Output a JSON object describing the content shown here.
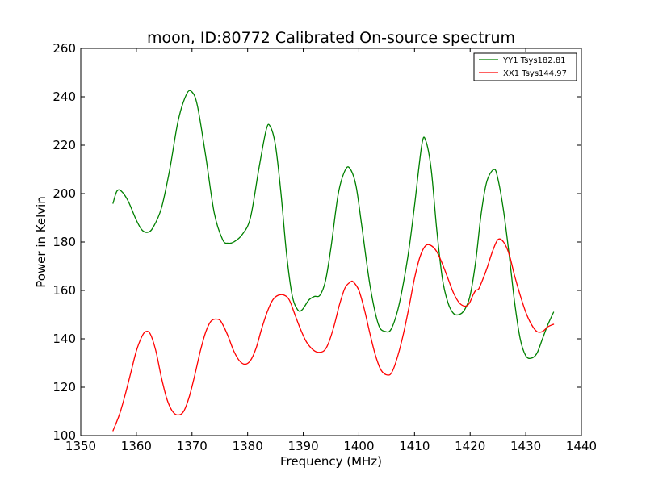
{
  "chart_data": {
    "type": "line",
    "title": "moon, ID:80772 Calibrated On-source spectrum",
    "xlabel": "Frequency (MHz)",
    "ylabel": "Power in Kelvin",
    "xlim": [
      1350,
      1440
    ],
    "ylim": [
      100,
      260
    ],
    "xticks": [
      1350,
      1360,
      1370,
      1380,
      1390,
      1400,
      1410,
      1420,
      1430,
      1440
    ],
    "yticks": [
      100,
      120,
      140,
      160,
      180,
      200,
      220,
      240,
      260
    ],
    "grid": false,
    "legend_position": "top-right",
    "series": [
      {
        "name": "YY1 Tsys182.81",
        "color": "#008000",
        "x": [
          1355.8,
          1356.5,
          1357.3,
          1358.5,
          1360.0,
          1361.0,
          1362.0,
          1363.0,
          1364.5,
          1366.0,
          1367.5,
          1369.0,
          1370.0,
          1371.0,
          1372.5,
          1374.0,
          1375.5,
          1376.5,
          1377.5,
          1379.0,
          1380.5,
          1382.0,
          1383.3,
          1384.0,
          1385.0,
          1386.0,
          1387.0,
          1388.0,
          1389.0,
          1389.8,
          1391.0,
          1392.0,
          1393.0,
          1394.0,
          1395.0,
          1396.3,
          1397.6,
          1398.5,
          1399.5,
          1400.5,
          1402.0,
          1403.5,
          1404.8,
          1405.8,
          1407.0,
          1408.0,
          1409.0,
          1410.0,
          1411.3,
          1412.0,
          1413.0,
          1414.0,
          1415.0,
          1416.0,
          1417.0,
          1418.0,
          1419.0,
          1420.0,
          1421.0,
          1422.0,
          1423.0,
          1424.3,
          1425.0,
          1426.0,
          1427.0,
          1428.0,
          1429.0,
          1430.0,
          1431.0,
          1432.0,
          1433.0,
          1434.0,
          1435.0
        ],
        "y": [
          196,
          201,
          201,
          197,
          189,
          185,
          184,
          186,
          194,
          210,
          230,
          241,
          242,
          236,
          215,
          192,
          181,
          179.5,
          180,
          183,
          190,
          210,
          226,
          228,
          220,
          200,
          175,
          158,
          152,
          152,
          156,
          157.5,
          158,
          164,
          178,
          200,
          210,
          210,
          203,
          187,
          162,
          146,
          143,
          144,
          152,
          163,
          177,
          195,
          220,
          222,
          210,
          185,
          165,
          155,
          150.5,
          150,
          152,
          158,
          172,
          192,
          205,
          210,
          206,
          193,
          175,
          155,
          140,
          133,
          132,
          134,
          140,
          146,
          151
        ]
      },
      {
        "name": "XX1 Tsys144.97",
        "color": "#ff0000",
        "x": [
          1355.8,
          1357.0,
          1358.0,
          1359.0,
          1360.0,
          1361.0,
          1361.7,
          1362.5,
          1363.5,
          1364.5,
          1365.5,
          1366.5,
          1367.5,
          1368.5,
          1369.5,
          1370.5,
          1371.5,
          1372.5,
          1373.5,
          1374.8,
          1375.5,
          1376.5,
          1377.5,
          1378.5,
          1379.5,
          1380.5,
          1381.5,
          1382.5,
          1383.5,
          1384.5,
          1385.5,
          1386.6,
          1387.5,
          1388.5,
          1389.5,
          1390.5,
          1391.5,
          1392.5,
          1393.7,
          1394.5,
          1395.5,
          1396.5,
          1397.5,
          1398.5,
          1399.0,
          1400.0,
          1401.0,
          1402.0,
          1403.0,
          1404.0,
          1405.2,
          1406.0,
          1407.0,
          1408.0,
          1409.0,
          1410.0,
          1411.0,
          1412.0,
          1413.0,
          1414.0,
          1415.0,
          1416.0,
          1417.0,
          1418.0,
          1419.0,
          1419.8,
          1420.5,
          1421.0,
          1421.5,
          1422.0,
          1423.0,
          1424.0,
          1425.0,
          1426.0,
          1427.0,
          1428.0,
          1429.0,
          1430.0,
          1431.0,
          1432.0,
          1433.0,
          1434.0,
          1435.0
        ],
        "y": [
          102,
          109,
          117,
          126,
          135,
          141,
          143,
          142,
          135,
          124,
          115,
          110,
          108.5,
          110,
          116,
          125,
          135,
          143,
          147.5,
          148,
          146,
          141,
          135,
          131,
          129.5,
          131,
          136,
          144,
          151,
          156,
          158,
          158,
          156,
          150,
          144,
          139,
          136,
          134.5,
          135,
          138,
          145,
          154,
          161,
          163.5,
          163.5,
          160,
          152,
          142,
          133,
          127,
          125,
          126.5,
          133,
          142,
          153,
          165,
          174,
          178.5,
          178.5,
          176,
          171,
          165,
          159,
          155,
          153.5,
          154.5,
          158,
          160,
          160.5,
          163,
          169,
          176,
          181,
          180,
          175,
          166,
          158,
          151,
          146,
          143,
          143,
          145,
          146
        ]
      }
    ]
  }
}
